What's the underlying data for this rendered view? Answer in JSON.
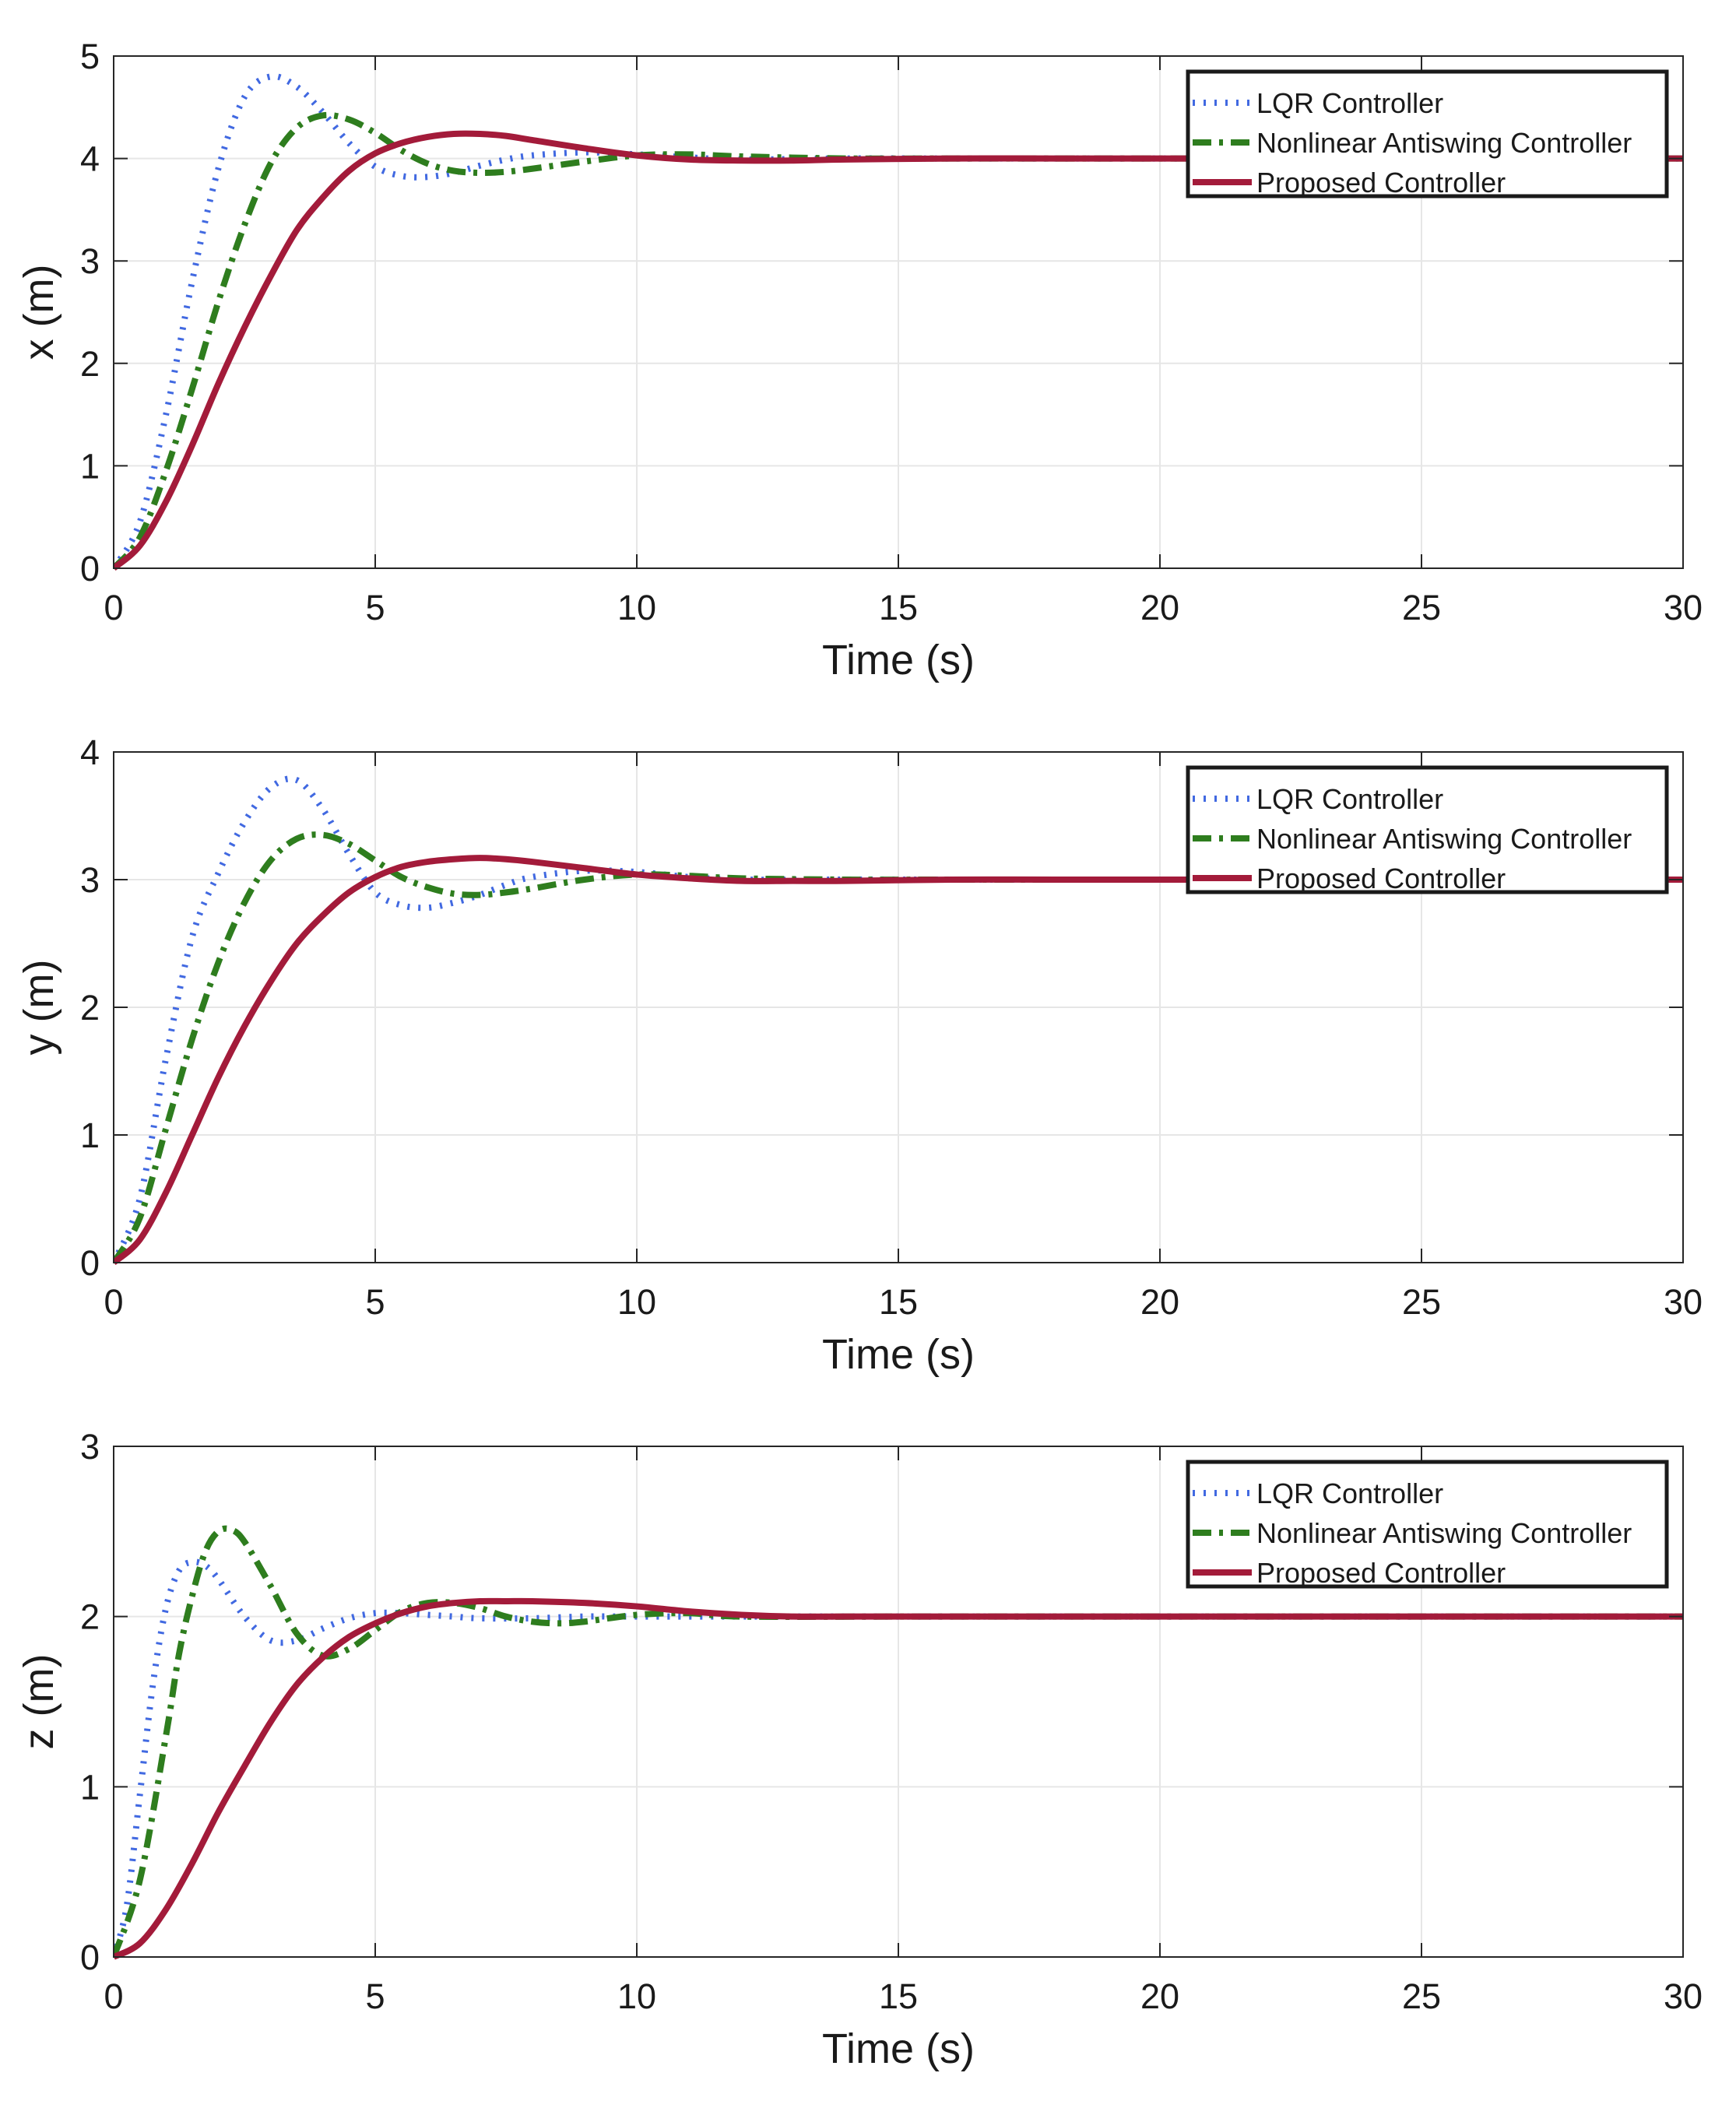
{
  "chart_data": [
    {
      "type": "line",
      "title": "",
      "xlabel": "Time (s)",
      "ylabel": "x (m)",
      "xlim": [
        0,
        30
      ],
      "ylim": [
        0,
        5
      ],
      "xticks": [
        "0",
        "5",
        "10",
        "15",
        "20",
        "25",
        "30"
      ],
      "yticks": [
        "0",
        "1",
        "2",
        "3",
        "4",
        "5"
      ],
      "grid": true,
      "legend_position": "top-right",
      "series": [
        {
          "name": "LQR Controller",
          "color": "#4169e1",
          "style": "dotted",
          "x": [
            0,
            0.5,
            1,
            1.5,
            2,
            2.5,
            3,
            3.5,
            4,
            4.5,
            5,
            5.5,
            6,
            6.5,
            7,
            7.5,
            8,
            9,
            10,
            11,
            12,
            14,
            16,
            20,
            25,
            30
          ],
          "y": [
            0,
            0.45,
            1.5,
            2.8,
            3.9,
            4.6,
            4.8,
            4.7,
            4.45,
            4.15,
            3.92,
            3.83,
            3.82,
            3.86,
            3.93,
            3.99,
            4.03,
            4.06,
            4.04,
            4.01,
            3.99,
            4.0,
            4.0,
            4.0,
            4.0,
            4.0
          ]
        },
        {
          "name": "Nonlinear Antiswing Controller",
          "color": "#2e7d1e",
          "style": "dashdot",
          "x": [
            0,
            0.5,
            1,
            1.5,
            2,
            2.5,
            3,
            3.5,
            4,
            4.5,
            5,
            5.5,
            6,
            6.5,
            7,
            7.5,
            8,
            9,
            10,
            11,
            12,
            14,
            16,
            20,
            25,
            30
          ],
          "y": [
            0,
            0.3,
            0.95,
            1.75,
            2.6,
            3.35,
            3.95,
            4.3,
            4.42,
            4.38,
            4.25,
            4.08,
            3.95,
            3.88,
            3.86,
            3.87,
            3.9,
            3.97,
            4.03,
            4.04,
            4.02,
            4.0,
            4.0,
            4.0,
            4.0,
            4.0
          ]
        },
        {
          "name": "Proposed Controller",
          "color": "#a31b3a",
          "style": "solid",
          "x": [
            0,
            0.5,
            1,
            1.5,
            2,
            2.5,
            3,
            3.5,
            4,
            4.5,
            5,
            5.5,
            6,
            6.5,
            7,
            7.5,
            8,
            9,
            10,
            11,
            12,
            13,
            14,
            16,
            18,
            20,
            25,
            30
          ],
          "y": [
            0,
            0.22,
            0.65,
            1.2,
            1.8,
            2.35,
            2.85,
            3.3,
            3.62,
            3.88,
            4.05,
            4.15,
            4.21,
            4.24,
            4.24,
            4.22,
            4.18,
            4.1,
            4.03,
            3.99,
            3.98,
            3.98,
            3.99,
            4.0,
            4.0,
            4.0,
            4.0,
            4.0
          ]
        }
      ]
    },
    {
      "type": "line",
      "title": "",
      "xlabel": "Time (s)",
      "ylabel": "y (m)",
      "xlim": [
        0,
        30
      ],
      "ylim": [
        0,
        4
      ],
      "xticks": [
        "0",
        "5",
        "10",
        "15",
        "20",
        "25",
        "30"
      ],
      "yticks": [
        "0",
        "1",
        "2",
        "3",
        "4"
      ],
      "grid": true,
      "legend_position": "top-right",
      "series": [
        {
          "name": "LQR Controller",
          "color": "#4169e1",
          "style": "dotted",
          "x": [
            0,
            0.5,
            1,
            1.5,
            2,
            2.5,
            3,
            3.5,
            4,
            4.5,
            5,
            5.5,
            6,
            6.5,
            7,
            7.5,
            8,
            9,
            10,
            11,
            12,
            14,
            16,
            20,
            25,
            30
          ],
          "y": [
            0,
            0.5,
            1.6,
            2.55,
            3.05,
            3.45,
            3.72,
            3.78,
            3.55,
            3.2,
            2.9,
            2.8,
            2.78,
            2.82,
            2.88,
            2.96,
            3.02,
            3.07,
            3.06,
            3.02,
            3.0,
            3.0,
            3.0,
            3.0,
            3.0,
            3.0
          ]
        },
        {
          "name": "Nonlinear Antiswing Controller",
          "color": "#2e7d1e",
          "style": "dashdot",
          "x": [
            0,
            0.5,
            1,
            1.5,
            2,
            2.5,
            3,
            3.5,
            4,
            4.5,
            5,
            5.5,
            6,
            6.5,
            7,
            7.5,
            8,
            9,
            10,
            11,
            12,
            14,
            16,
            20,
            25,
            30
          ],
          "y": [
            0,
            0.35,
            1.05,
            1.75,
            2.35,
            2.82,
            3.15,
            3.32,
            3.35,
            3.28,
            3.15,
            3.02,
            2.94,
            2.89,
            2.88,
            2.9,
            2.93,
            3.0,
            3.04,
            3.03,
            3.01,
            3.0,
            3.0,
            3.0,
            3.0,
            3.0
          ]
        },
        {
          "name": "Proposed Controller",
          "color": "#a31b3a",
          "style": "solid",
          "x": [
            0,
            0.5,
            1,
            1.5,
            2,
            2.5,
            3,
            3.5,
            4,
            4.5,
            5,
            5.5,
            6,
            6.5,
            7,
            7.5,
            8,
            9,
            10,
            11,
            12,
            13,
            14,
            16,
            18,
            20,
            25,
            30
          ],
          "y": [
            0,
            0.18,
            0.55,
            1.0,
            1.45,
            1.85,
            2.2,
            2.5,
            2.72,
            2.9,
            3.02,
            3.1,
            3.14,
            3.16,
            3.17,
            3.16,
            3.14,
            3.09,
            3.04,
            3.01,
            2.99,
            2.99,
            2.99,
            3.0,
            3.0,
            3.0,
            3.0,
            3.0
          ]
        }
      ]
    },
    {
      "type": "line",
      "title": "",
      "xlabel": "Time (s)",
      "ylabel": "z (m)",
      "xlim": [
        0,
        30
      ],
      "ylim": [
        0,
        3
      ],
      "xticks": [
        "0",
        "5",
        "10",
        "15",
        "20",
        "25",
        "30"
      ],
      "yticks": [
        "0",
        "1",
        "2",
        "3"
      ],
      "grid": true,
      "legend_position": "top-right",
      "series": [
        {
          "name": "LQR Controller",
          "color": "#4169e1",
          "style": "dotted",
          "x": [
            0,
            0.25,
            0.5,
            0.75,
            1,
            1.25,
            1.5,
            1.75,
            2,
            2.5,
            3,
            3.5,
            4,
            4.5,
            5,
            5.5,
            6,
            6.5,
            7,
            8,
            9,
            10,
            12,
            15,
            20,
            25,
            30
          ],
          "y": [
            0,
            0.3,
            0.95,
            1.6,
            2.05,
            2.27,
            2.32,
            2.3,
            2.22,
            2.0,
            1.86,
            1.86,
            1.93,
            1.99,
            2.02,
            2.02,
            2.01,
            2.0,
            1.99,
            1.99,
            2.0,
            2.0,
            2.0,
            2.0,
            2.0,
            2.0,
            2.0
          ]
        },
        {
          "name": "Nonlinear Antiswing Controller",
          "color": "#2e7d1e",
          "style": "dashdot",
          "x": [
            0,
            0.5,
            1,
            1.25,
            1.5,
            1.75,
            2,
            2.25,
            2.5,
            3,
            3.5,
            4,
            4.5,
            5,
            5.5,
            6,
            6.5,
            7,
            7.5,
            8,
            8.5,
            9,
            10,
            11,
            12,
            15,
            20,
            25,
            30
          ],
          "y": [
            0,
            0.45,
            1.3,
            1.78,
            2.12,
            2.38,
            2.5,
            2.51,
            2.44,
            2.18,
            1.9,
            1.77,
            1.81,
            1.92,
            2.03,
            2.08,
            2.08,
            2.05,
            2.0,
            1.97,
            1.96,
            1.97,
            2.01,
            2.02,
            2.0,
            2.0,
            2.0,
            2.0,
            2.0
          ]
        },
        {
          "name": "Proposed Controller",
          "color": "#a31b3a",
          "style": "solid",
          "x": [
            0,
            0.5,
            1,
            1.5,
            2,
            2.5,
            3,
            3.5,
            4,
            4.5,
            5,
            5.5,
            6,
            6.5,
            7,
            7.5,
            8,
            9,
            10,
            11,
            12,
            13,
            14,
            16,
            20,
            25,
            30
          ],
          "y": [
            0,
            0.08,
            0.28,
            0.55,
            0.85,
            1.12,
            1.38,
            1.6,
            1.76,
            1.88,
            1.96,
            2.02,
            2.06,
            2.08,
            2.09,
            2.09,
            2.09,
            2.08,
            2.06,
            2.03,
            2.01,
            2.0,
            2.0,
            2.0,
            2.0,
            2.0,
            2.0
          ]
        }
      ]
    }
  ]
}
